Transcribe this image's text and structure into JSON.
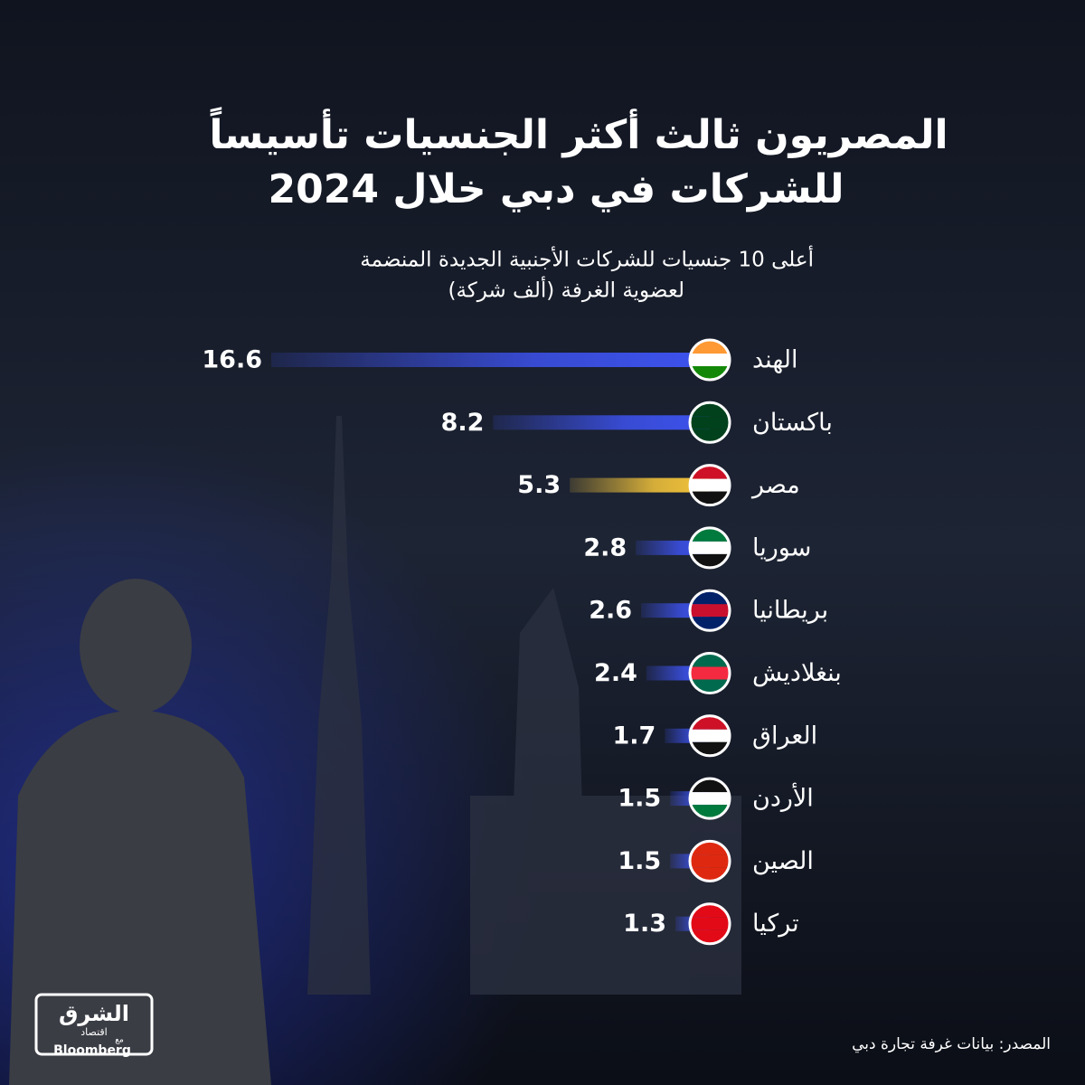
{
  "chart_data": {
    "type": "bar",
    "orientation": "horizontal",
    "title": [
      "المصريون ثالث أكثر الجنسيات تأسيساً",
      "للشركات في دبي خلال 2024"
    ],
    "subtitle": [
      "أعلى 10 جنسيات للشركات الأجنبية الجديدة المنضمة",
      "لعضوية الغرفة (ألف شركة)"
    ],
    "categories": [
      "الهند",
      "باكستان",
      "مصر",
      "سوريا",
      "بريطانيا",
      "بنغلاديش",
      "العراق",
      "الأردن",
      "الصين",
      "تركيا"
    ],
    "values": [
      16.6,
      8.2,
      5.3,
      2.8,
      2.6,
      2.4,
      1.7,
      1.5,
      1.5,
      1.3
    ],
    "colors": [
      "#3d52ee",
      "#3d52ee",
      "#f5c53a",
      "#3d52ee",
      "#3d52ee",
      "#3d52ee",
      "#3d52ee",
      "#3d52ee",
      "#3d52ee",
      "#3d52ee"
    ],
    "source": "المصدر: بيانات غرفة تجارة دبي",
    "logo": {
      "name": "الشرق",
      "sub": "اقتصاد",
      "with": "مع",
      "partner": "Bloomberg"
    }
  }
}
